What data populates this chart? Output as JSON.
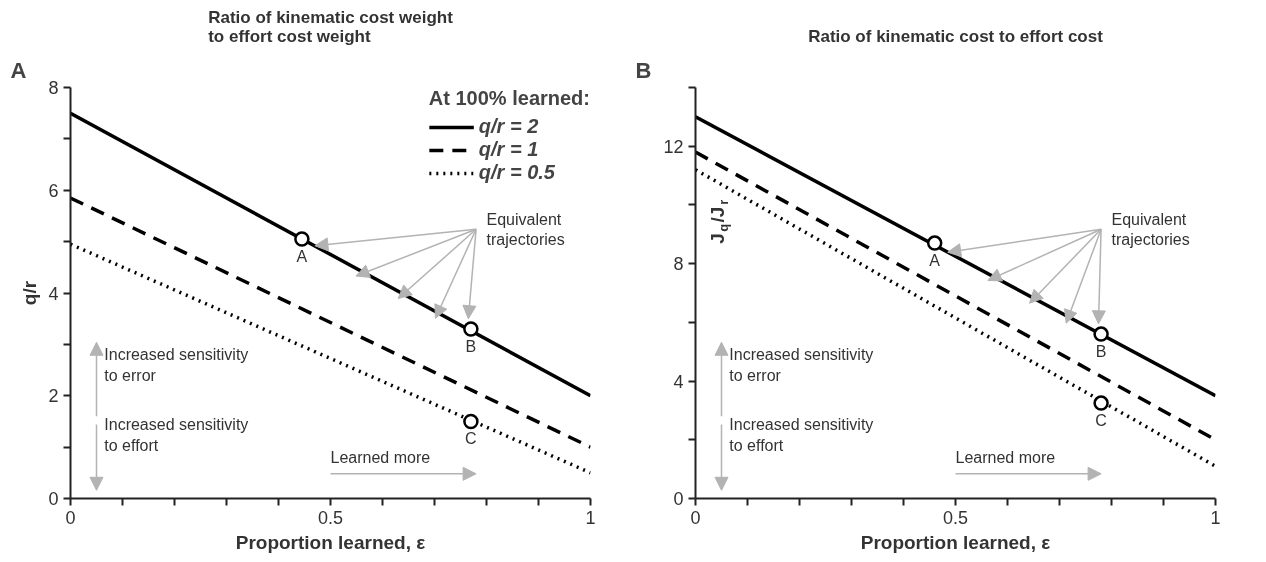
{
  "chart_data": [
    {
      "type": "line",
      "title": "Ratio of kinematic cost weight to effort cost weight",
      "xlabel": "Proportion learned, ε",
      "ylabel": "q/r",
      "legend_title": "At 100% learned:",
      "legend": "top right",
      "grid": false,
      "xlim": [
        0,
        1
      ],
      "ylim": [
        0,
        8
      ],
      "xticks": [
        0,
        {
          "value": 0.1,
          "label": null
        },
        {
          "value": 0.2,
          "label": null
        },
        {
          "value": 0.3,
          "label": null
        },
        {
          "value": 0.4,
          "label": null
        },
        0.5,
        {
          "value": 0.6,
          "label": null
        },
        {
          "value": 0.7,
          "label": null
        },
        {
          "value": 0.8,
          "label": null
        },
        {
          "value": 0.9,
          "label": null
        },
        1
      ],
      "yticks": [
        0,
        {
          "value": 1,
          "label": null
        },
        2,
        {
          "value": 3,
          "label": null
        },
        4,
        {
          "value": 5,
          "label": null
        },
        6,
        {
          "value": 7,
          "label": null
        },
        8
      ],
      "series": [
        {
          "name": "q/r = 2",
          "color": "#000000",
          "line_style": "solid",
          "x": [
            0,
            1
          ],
          "values": [
            7.5,
            2.0
          ]
        },
        {
          "name": "q/r = 1",
          "color": "#000000",
          "line_style": "dashed",
          "x": [
            0,
            1
          ],
          "values": [
            5.85,
            1.0
          ]
        },
        {
          "name": "q/r = 0.5",
          "color": "#000000",
          "line_style": "dotted",
          "x": [
            0,
            1
          ],
          "values": [
            4.95,
            0.5
          ]
        },
        {
          "type": "scatter",
          "marker": "circle",
          "color": "#000000",
          "x": [
            0.445,
            0.77,
            0.77
          ],
          "values": [
            5.05,
            3.3,
            1.5
          ]
        }
      ],
      "annotations": [
        "A",
        {
          "text": "Equivalent trajectories",
          "x": 0.47,
          "y": 4.92
        },
        "Increased sensitivity to error",
        "Increased sensitivity to effort",
        "Learned more",
        {
          "text": "A",
          "x": 0.445,
          "y": 5.05
        },
        {
          "text": "B",
          "x": 0.77,
          "y": 3.3
        },
        {
          "text": "C",
          "x": 0.77,
          "y": 1.5
        }
      ]
    },
    {
      "type": "line",
      "title": "Ratio of kinematic cost to effort cost",
      "xlabel": "Proportion learned, ε",
      "ylabel": "J$_{q}$/J$_{r}$",
      "grid": false,
      "xlim": [
        0,
        1
      ],
      "ylim": [
        0,
        14
      ],
      "xticks": [
        0,
        {
          "value": 0.1,
          "label": null
        },
        {
          "value": 0.2,
          "label": null
        },
        {
          "value": 0.3,
          "label": null
        },
        {
          "value": 0.4,
          "label": null
        },
        0.5,
        {
          "value": 0.6,
          "label": null
        },
        {
          "value": 0.7,
          "label": null
        },
        {
          "value": 0.8,
          "label": null
        },
        {
          "value": 0.9,
          "label": null
        },
        1
      ],
      "yticks": [
        0,
        {
          "value": 2,
          "label": null
        },
        4,
        {
          "value": 6,
          "label": null
        },
        8,
        {
          "value": 10,
          "label": null
        },
        12,
        {
          "value": 14,
          "label": null
        }
      ],
      "series": [
        {
          "color": "#000000",
          "line_style": "solid",
          "x": [
            0,
            1
          ],
          "values": [
            13.0,
            3.5
          ]
        },
        {
          "color": "#000000",
          "line_style": "dashed",
          "x": [
            0,
            1
          ],
          "values": [
            11.8,
            2.0
          ]
        },
        {
          "color": "#000000",
          "line_style": "dotted",
          "x": [
            0,
            1
          ],
          "values": [
            11.2,
            1.1
          ]
        },
        {
          "type": "scatter",
          "marker": "circle",
          "color": "#000000",
          "x": [
            0.46,
            0.78,
            0.78
          ],
          "values": [
            8.7,
            5.6,
            3.25
          ]
        }
      ],
      "annotations": [
        "B",
        {
          "text": "Equivalent trajectories",
          "x": 0.485,
          "y": 8.39
        },
        "Increased sensitivity to error",
        "Increased sensitivity to effort",
        "Learned more",
        {
          "text": "A",
          "x": 0.46,
          "y": 8.7
        },
        {
          "text": "B",
          "x": 0.78,
          "y": 5.6
        },
        {
          "text": "C",
          "x": 0.78,
          "y": 3.25
        }
      ]
    }
  ]
}
